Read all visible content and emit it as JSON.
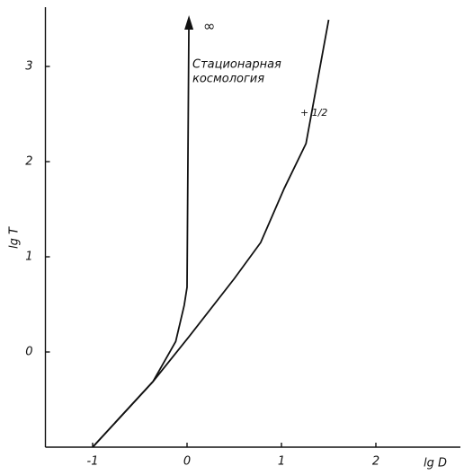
{
  "chart_data": {
    "type": "line",
    "xlabel": "lg D",
    "ylabel": "lg T",
    "xlim": [
      -1.5,
      2.8
    ],
    "ylim": [
      -1,
      3.5
    ],
    "xticks": [
      -1,
      0,
      1,
      2
    ],
    "yticks": [
      0,
      1,
      2,
      3
    ],
    "annotations": [
      "∞",
      "Стационарная",
      "космология",
      "+ 1/2"
    ],
    "series": [
      {
        "name": "Стационарная космология",
        "color": "#111111",
        "x": [
          -1,
          -0.36,
          -0.12,
          -0.03,
          0,
          0.02
        ],
        "values": [
          -1,
          -0.31,
          0.11,
          0.49,
          0.68,
          3.5
        ]
      },
      {
        "name": "+ 1/2",
        "color": "#111111",
        "x": [
          -1,
          -0.36,
          0.02,
          0.5,
          0.78,
          1.03,
          1.26,
          1.5
        ],
        "values": [
          -1,
          -0.31,
          0.16,
          0.77,
          1.15,
          1.72,
          2.19,
          3.49
        ]
      }
    ]
  }
}
